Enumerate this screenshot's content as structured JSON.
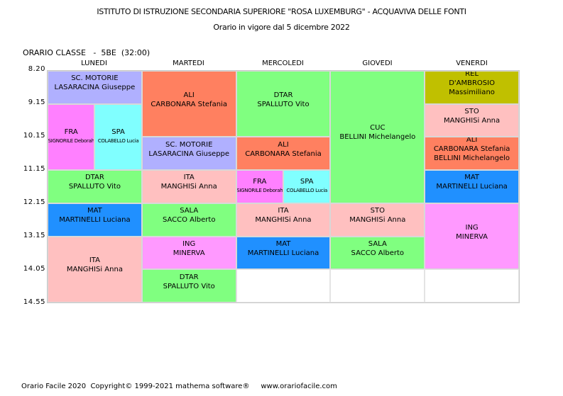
{
  "header": {
    "title": "ISTITUTO DI ISTRUZIONE SECONDARIA SUPERIORE \"ROSA LUXEMBURG\" - ACQUAVIVA DELLE FONTI",
    "subtitle": "Orario in vigore dal 5 dicembre 2022",
    "class_label": "ORARIO CLASSE   -  5BE  (32:00)"
  },
  "days": [
    "LUNEDI",
    "MARTEDI",
    "MERCOLEDI",
    "GIOVEDI",
    "VENERDI"
  ],
  "times": [
    "8.20",
    "9.15",
    "10.15",
    "11.15",
    "12.15",
    "13.15",
    "14.05",
    "14.55"
  ],
  "colors": {
    "lavender": "#b0b0ff",
    "magenta": "#ff80ff",
    "cyan": "#80ffff",
    "green": "#80ff80",
    "blue": "#2090ff",
    "pink": "#ffc0c0",
    "orange": "#ff8060",
    "olive": "#c0c000",
    "violet": "#ff99ff"
  },
  "lessons": [
    {
      "day": 1,
      "start": 1,
      "span": 1,
      "color": "#b0b0ff",
      "lines": [
        "SC. MOTORIE",
        "LASARACINA Giuseppe"
      ]
    },
    {
      "day": 1,
      "start": 2,
      "span": 2,
      "split": [
        {
          "color": "#ff80ff",
          "subject": "FRA",
          "teacher": "SIGNORILE Deborah"
        },
        {
          "color": "#80ffff",
          "subject": "SPA",
          "teacher": "COLABELLO Lucia"
        }
      ]
    },
    {
      "day": 1,
      "start": 4,
      "span": 1,
      "color": "#80ff80",
      "lines": [
        "DTAR",
        "SPALLUTO Vito"
      ]
    },
    {
      "day": 1,
      "start": 5,
      "span": 1,
      "color": "#2090ff",
      "lines": [
        "MAT",
        "MARTINELLI Luciana"
      ]
    },
    {
      "day": 1,
      "start": 6,
      "span": 2,
      "color": "#ffc0c0",
      "lines": [
        "ITA",
        "MANGHISi Anna"
      ]
    },
    {
      "day": 2,
      "start": 1,
      "span": 2,
      "color": "#ff8060",
      "lines": [
        "ALI",
        "CARBONARA Stefania"
      ]
    },
    {
      "day": 2,
      "start": 3,
      "span": 1,
      "color": "#b0b0ff",
      "lines": [
        "SC. MOTORIE",
        "LASARACINA Giuseppe"
      ]
    },
    {
      "day": 2,
      "start": 4,
      "span": 1,
      "color": "#ffc0c0",
      "lines": [
        "ITA",
        "MANGHISi Anna"
      ]
    },
    {
      "day": 2,
      "start": 5,
      "span": 1,
      "color": "#80ff80",
      "lines": [
        "SALA",
        "SACCO Alberto"
      ]
    },
    {
      "day": 2,
      "start": 6,
      "span": 1,
      "color": "#ff99ff",
      "lines": [
        "ING",
        "MINERVA"
      ]
    },
    {
      "day": 2,
      "start": 7,
      "span": 1,
      "color": "#80ff80",
      "lines": [
        "DTAR",
        "SPALLUTO Vito"
      ]
    },
    {
      "day": 3,
      "start": 1,
      "span": 2,
      "color": "#80ff80",
      "lines": [
        "DTAR",
        "SPALLUTO Vito"
      ]
    },
    {
      "day": 3,
      "start": 3,
      "span": 1,
      "color": "#ff8060",
      "lines": [
        "ALI",
        "CARBONARA Stefania"
      ]
    },
    {
      "day": 3,
      "start": 4,
      "span": 1,
      "split": [
        {
          "color": "#ff80ff",
          "subject": "FRA",
          "teacher": "SIGNORILE Deborah"
        },
        {
          "color": "#80ffff",
          "subject": "SPA",
          "teacher": "COLABELLO Lucia"
        }
      ]
    },
    {
      "day": 3,
      "start": 5,
      "span": 1,
      "color": "#ffc0c0",
      "lines": [
        "ITA",
        "MANGHISi Anna"
      ]
    },
    {
      "day": 3,
      "start": 6,
      "span": 1,
      "color": "#2090ff",
      "lines": [
        "MAT",
        "MARTINELLI Luciana"
      ]
    },
    {
      "day": 3,
      "start": 7,
      "span": 1,
      "color": "#ffffff",
      "lines": []
    },
    {
      "day": 4,
      "start": 1,
      "span": 4,
      "color": "#80ff80",
      "lines": [
        "CUC",
        "BELLINI Michelangelo"
      ]
    },
    {
      "day": 4,
      "start": 5,
      "span": 1,
      "color": "#ffc0c0",
      "lines": [
        "STO",
        "MANGHISi Anna"
      ]
    },
    {
      "day": 4,
      "start": 6,
      "span": 1,
      "color": "#80ff80",
      "lines": [
        "SALA",
        "SACCO Alberto"
      ]
    },
    {
      "day": 4,
      "start": 7,
      "span": 1,
      "color": "#ffffff",
      "lines": []
    },
    {
      "day": 5,
      "start": 1,
      "span": 1,
      "color": "#c0c000",
      "lines": [
        "REL",
        "D'AMBROSIO Massimiliano"
      ]
    },
    {
      "day": 5,
      "start": 2,
      "span": 1,
      "color": "#ffc0c0",
      "lines": [
        "STO",
        "MANGHISi Anna"
      ]
    },
    {
      "day": 5,
      "start": 3,
      "span": 1,
      "color": "#ff8060",
      "lines": [
        "ALI",
        "CARBONARA Stefania",
        "BELLINI Michelangelo"
      ]
    },
    {
      "day": 5,
      "start": 4,
      "span": 1,
      "color": "#2090ff",
      "lines": [
        "MAT",
        "MARTINELLI Luciana"
      ]
    },
    {
      "day": 5,
      "start": 5,
      "span": 2,
      "color": "#ff99ff",
      "lines": [
        "ING",
        "MINERVA"
      ]
    },
    {
      "day": 5,
      "start": 7,
      "span": 1,
      "color": "#ffffff",
      "lines": []
    }
  ],
  "footer": "Orario Facile 2020  Copyright© 1999-2021 mathema software®     www.orariofacile.com"
}
